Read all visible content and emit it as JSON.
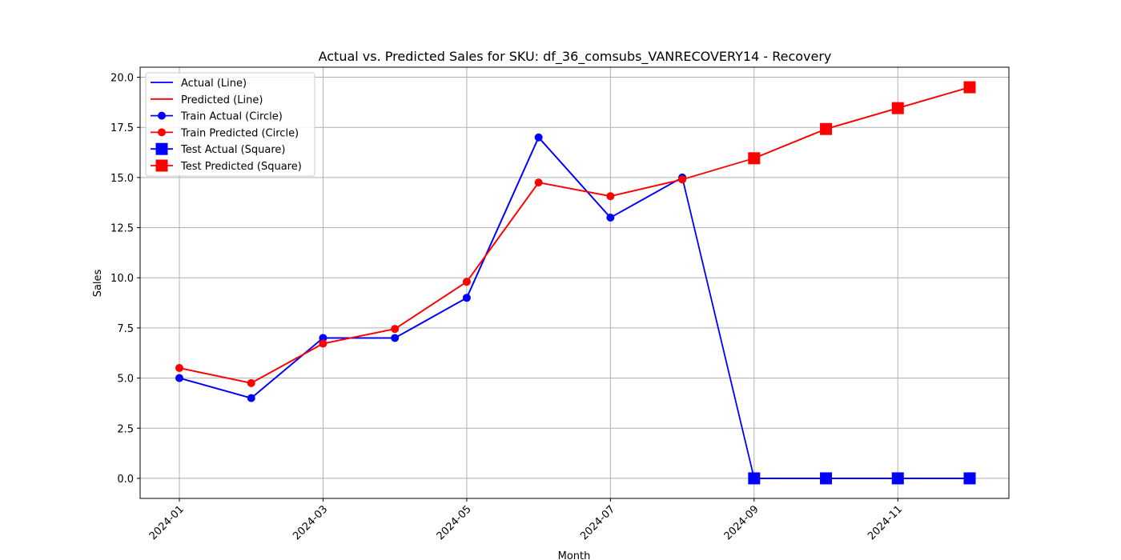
{
  "chart_data": {
    "type": "line",
    "title": "Actual vs. Predicted Sales for SKU: df_36_comsubs_VANRECOVERY14 - Recovery",
    "xlabel": "Month",
    "ylabel": "Sales",
    "x": [
      "2024-01",
      "2024-02",
      "2024-03",
      "2024-04",
      "2024-05",
      "2024-06",
      "2024-07",
      "2024-08",
      "2024-09",
      "2024-10",
      "2024-11",
      "2024-12"
    ],
    "x_ticks": [
      "2024-01",
      "2024-03",
      "2024-05",
      "2024-07",
      "2024-09",
      "2024-11"
    ],
    "y_ticks": [
      "0.0",
      "2.5",
      "5.0",
      "7.5",
      "10.0",
      "12.5",
      "15.0",
      "17.5",
      "20.0"
    ],
    "ylim": [
      -1,
      20.5
    ],
    "grid": true,
    "legend_position": "top-left",
    "series": [
      {
        "name": "Actual (Line)",
        "color": "#0000ff",
        "marker": "none",
        "values": [
          5,
          4,
          7,
          7,
          9,
          17,
          13,
          15,
          0,
          0,
          0,
          0
        ]
      },
      {
        "name": "Predicted (Line)",
        "color": "#ff0000",
        "marker": "none",
        "values": [
          5.5,
          4.75,
          6.72,
          7.45,
          9.8,
          14.75,
          14.07,
          14.9,
          15.96,
          17.42,
          18.46,
          19.5
        ]
      },
      {
        "name": "Train Actual (Circle)",
        "color": "#0000ff",
        "marker": "circle",
        "x": [
          "2024-01",
          "2024-02",
          "2024-03",
          "2024-04",
          "2024-05",
          "2024-06",
          "2024-07",
          "2024-08"
        ],
        "values": [
          5,
          4,
          7,
          7,
          9,
          17,
          13,
          15
        ]
      },
      {
        "name": "Train Predicted (Circle)",
        "color": "#ff0000",
        "marker": "circle",
        "x": [
          "2024-01",
          "2024-02",
          "2024-03",
          "2024-04",
          "2024-05",
          "2024-06",
          "2024-07",
          "2024-08"
        ],
        "values": [
          5.5,
          4.75,
          6.72,
          7.45,
          9.8,
          14.75,
          14.07,
          14.9
        ]
      },
      {
        "name": "Test Actual (Square)",
        "color": "#0000ff",
        "marker": "square",
        "x": [
          "2024-09",
          "2024-10",
          "2024-11",
          "2024-12"
        ],
        "values": [
          0,
          0,
          0,
          0
        ]
      },
      {
        "name": "Test Predicted (Square)",
        "color": "#ff0000",
        "marker": "square",
        "x": [
          "2024-09",
          "2024-10",
          "2024-11",
          "2024-12"
        ],
        "values": [
          15.96,
          17.42,
          18.46,
          19.5
        ]
      }
    ]
  }
}
